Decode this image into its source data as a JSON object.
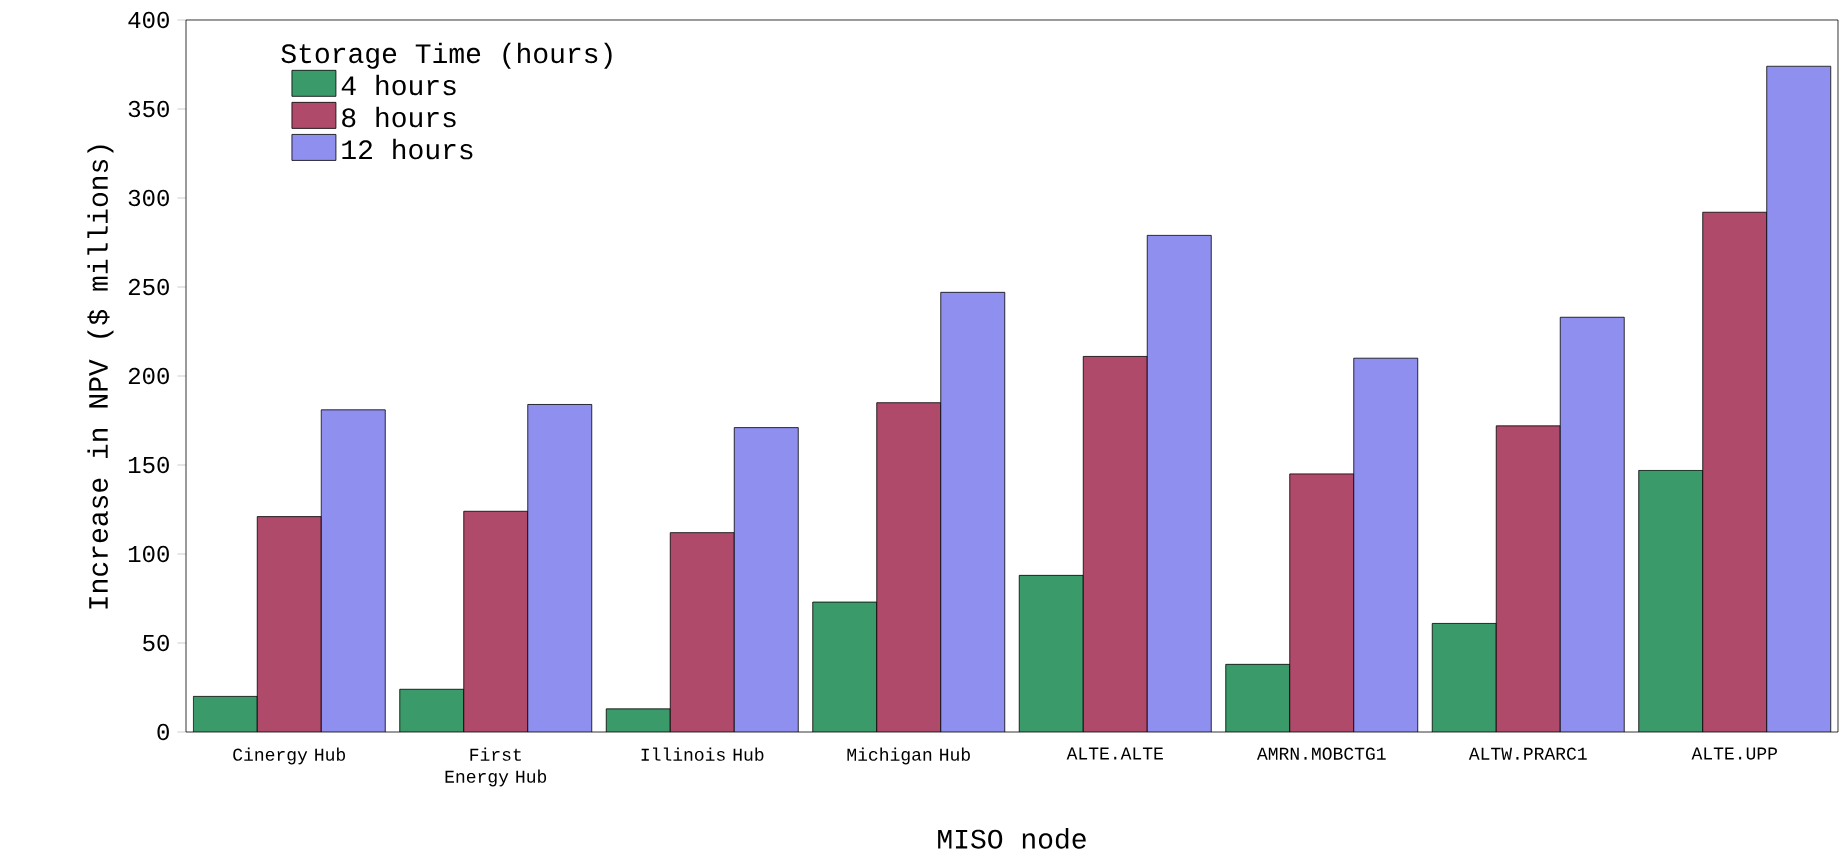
{
  "chart_data": {
    "type": "bar",
    "xlabel": "MISO node",
    "ylabel": "Increase in NPV ($ millions)",
    "legend_title": "Storage Time (hours)",
    "legend": "top left",
    "categories": [
      "Cinergy Hub",
      "First Energy Hub",
      "Illinois Hub",
      "Michigan Hub",
      "ALTE.ALTE",
      "AMRN.MOBCTG1",
      "ALTW.PRARC1",
      "ALTE.UPP"
    ],
    "series": [
      {
        "name": "4 hours",
        "color": "#3a9a6a",
        "values": [
          20,
          24,
          13,
          73,
          88,
          38,
          61,
          147
        ]
      },
      {
        "name": "8 hours",
        "color": "#b04a6a",
        "values": [
          121,
          124,
          112,
          185,
          211,
          145,
          172,
          292
        ]
      },
      {
        "name": "12 hours",
        "color": "#8f8fef",
        "values": [
          181,
          184,
          171,
          247,
          279,
          210,
          233,
          374
        ]
      }
    ],
    "ylim": [
      0,
      400
    ],
    "yticks": [
      0,
      50,
      100,
      150,
      200,
      250,
      300,
      350,
      400
    ]
  }
}
